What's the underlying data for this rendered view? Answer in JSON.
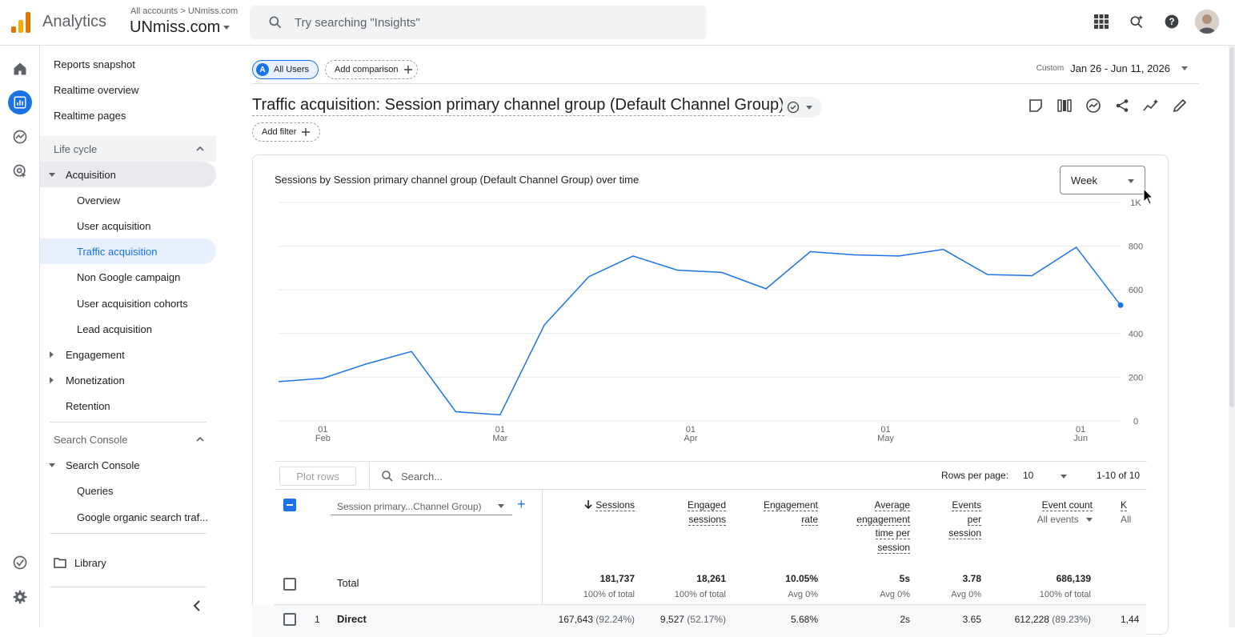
{
  "app": {
    "name": "Analytics",
    "breadcrumb": "All accounts > UNmiss.com",
    "account": "UNmiss.com",
    "search_placeholder": "Try searching \"Insights\""
  },
  "nav": {
    "reports_snapshot": "Reports snapshot",
    "realtime_overview": "Realtime overview",
    "realtime_pages": "Realtime pages",
    "lifecycle": "Life cycle",
    "acquisition": "Acquisition",
    "acq_items": [
      "Overview",
      "User acquisition",
      "Traffic acquisition",
      "Non Google campaign",
      "User acquisition cohorts",
      "Lead acquisition"
    ],
    "engagement": "Engagement",
    "monetization": "Monetization",
    "retention": "Retention",
    "search_console_section": "Search Console",
    "search_console": "Search Console",
    "sc_items": [
      "Queries",
      "Google organic search traf..."
    ],
    "library": "Library"
  },
  "toolbar": {
    "all_users": "All Users",
    "all_users_letter": "A",
    "add_comparison": "Add comparison",
    "date_custom": "Custom",
    "date_range": "Jan 26 - Jun 11, 2026",
    "add_filter": "Add filter"
  },
  "page_title": "Traffic acquisition: Session primary channel group (Default Channel Group)",
  "chart_card": {
    "title": "Sessions by Session primary channel group (Default Channel Group) over time",
    "granularity": "Week"
  },
  "chart_data": {
    "type": "line",
    "x": [
      "Jan 26",
      "Feb 2",
      "Feb 9",
      "Feb 16",
      "Feb 23",
      "Mar 2",
      "Mar 9",
      "Mar 16",
      "Mar 23",
      "Mar 30",
      "Apr 6",
      "Apr 13",
      "Apr 20",
      "Apr 27",
      "May 4",
      "May 11",
      "May 18",
      "May 25",
      "Jun 1",
      "Jun 8"
    ],
    "series": [
      {
        "values": [
          180,
          195,
          262,
          318,
          42,
          28,
          440,
          660,
          755,
          690,
          680,
          605,
          775,
          760,
          755,
          785,
          670,
          665,
          795,
          530
        ],
        "color": "#1a73e8"
      }
    ],
    "ylim": [
      0,
      1000
    ],
    "yticks": [
      "0",
      "200",
      "400",
      "600",
      "800",
      "1K"
    ],
    "xticks": [
      {
        "day": "01",
        "month": "Feb",
        "index": 1
      },
      {
        "day": "01",
        "month": "Mar",
        "index": 5
      },
      {
        "day": "01",
        "month": "Apr",
        "index": 9.3
      },
      {
        "day": "01",
        "month": "May",
        "index": 13.7
      },
      {
        "day": "01",
        "month": "Jun",
        "index": 18.1
      }
    ],
    "grid": true
  },
  "table": {
    "plot_rows": "Plot rows",
    "search_placeholder": "Search...",
    "rows_per_page_label": "Rows per page:",
    "rows_per_page": "10",
    "range": "1-10 of 10",
    "dimension": "Session primary...Channel Group)",
    "columns": {
      "sessions": "Sessions",
      "engaged_1": "Engaged",
      "engaged_2": "sessions",
      "engrate_1": "Engagement",
      "engrate_2": "rate",
      "avg_1": "Average",
      "avg_2": "engagement",
      "avg_3": "time per",
      "avg_4": "session",
      "eps_1": "Events",
      "eps_2": "per",
      "eps_3": "session",
      "event_count": "Event count",
      "event_sub": "All events",
      "key_1": "K",
      "key_sub": "All"
    },
    "total": {
      "label": "Total",
      "sessions": "181,737",
      "sessions_sub": "100% of total",
      "engaged": "18,261",
      "engaged_sub": "100% of total",
      "rate": "10.05%",
      "rate_sub": "Avg 0%",
      "avg": "5s",
      "avg_sub": "Avg 0%",
      "eps": "3.78",
      "eps_sub": "Avg 0%",
      "events": "686,139",
      "events_sub": "100% of total"
    },
    "rows": [
      {
        "num": "1",
        "name": "Direct",
        "sessions": "167,643",
        "sessions_pct": "(92.24%)",
        "engaged": "9,527",
        "engaged_pct": "(52.17%)",
        "rate": "5.68%",
        "avg": "2s",
        "eps": "3.65",
        "events": "612,228",
        "events_pct": "(89.23%)",
        "key": "1,44"
      }
    ]
  }
}
